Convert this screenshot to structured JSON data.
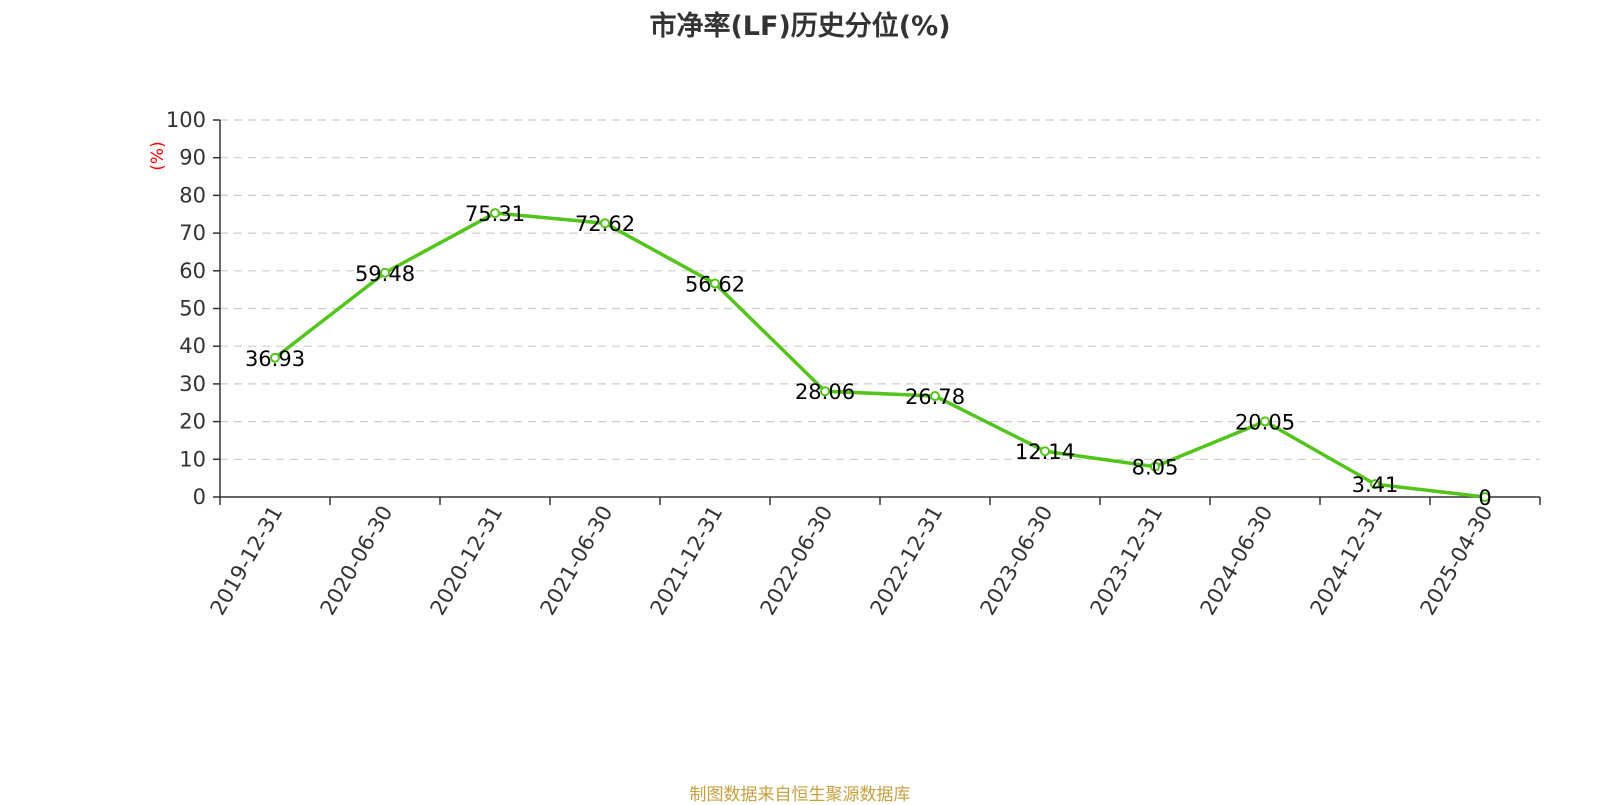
{
  "title": "市净率(LF)历史分位(%)",
  "source": "制图数据来自恒生聚源数据库",
  "colors": {
    "line": "#52c41a",
    "axis": "#333333",
    "grid": "#cccccc",
    "ylabel": "#ff0000",
    "source": "#c8a040"
  },
  "chart_data": {
    "type": "line",
    "title": "市净率(LF)历史分位(%)",
    "xlabel": "",
    "ylabel": "(%)",
    "ylim": [
      0,
      100
    ],
    "yticks": [
      0,
      10,
      20,
      30,
      40,
      50,
      60,
      70,
      80,
      90,
      100
    ],
    "grid": true,
    "categories": [
      "2019-12-31",
      "2020-06-30",
      "2020-12-31",
      "2021-06-30",
      "2021-12-31",
      "2022-06-30",
      "2022-12-31",
      "2023-06-30",
      "2023-12-31",
      "2024-06-30",
      "2024-12-31",
      "2025-04-30"
    ],
    "series": [
      {
        "values": [
          36.93,
          59.48,
          75.31,
          72.62,
          56.62,
          28.06,
          26.78,
          12.14,
          8.05,
          20.05,
          3.41,
          0
        ],
        "labels": [
          "36.93",
          "59.48",
          "75.31",
          "72.62",
          "56.62",
          "28.06",
          "26.78",
          "12.14",
          "8.05",
          "20.05",
          "3.41",
          "0"
        ]
      }
    ]
  }
}
